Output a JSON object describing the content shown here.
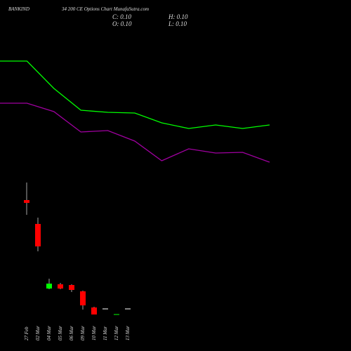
{
  "chart_data": [
    {
      "type": "candlestick",
      "title": "BANKIND",
      "subtitle": "34 200  CE Options  Chart MunafaSutra.com",
      "annotations": [
        "C: 0.10",
        "H: 0.10",
        "O: 0.10",
        "L: 0.10"
      ],
      "categories": [
        "27 Feb",
        "02 Mar",
        "04 Mar",
        "05 Mar",
        "06 Mar",
        "09 Mar",
        "10 Mar",
        "11 Mar",
        "12 Mar",
        "13 Mar"
      ],
      "open": [
        1.65,
        1.31,
        0.39,
        0.45,
        0.44,
        0.35,
        0.12,
        0.1,
        0.02,
        0.1
      ],
      "high": [
        1.9,
        1.4,
        0.53,
        0.47,
        0.45,
        0.36,
        0.13,
        0.1,
        0.02,
        0.1
      ],
      "low": [
        1.44,
        0.92,
        0.38,
        0.38,
        0.34,
        0.09,
        0.02,
        0.1,
        0.02,
        0.1
      ],
      "close": [
        1.61,
        0.99,
        0.46,
        0.39,
        0.37,
        0.15,
        0.02,
        0.1,
        0.02,
        0.1
      ],
      "up_color": "#00ff00",
      "down_color": "#ff0000",
      "flat_color": "#ffffff",
      "ylim": [
        0,
        4.5
      ]
    },
    {
      "type": "line",
      "x": [
        0,
        1,
        2,
        3,
        4,
        5,
        6,
        7,
        8,
        9,
        10
      ],
      "xlim": [
        0,
        10
      ],
      "series": [
        {
          "color": "#00ff00",
          "values": [
            3.63,
            3.63,
            3.24,
            2.93,
            2.9,
            2.89,
            2.75,
            2.67,
            2.72,
            2.67,
            2.72
          ]
        },
        {
          "color": "#a000a0",
          "values": [
            3.03,
            3.03,
            2.91,
            2.62,
            2.64,
            2.49,
            2.21,
            2.38,
            2.32,
            2.33,
            2.19
          ]
        }
      ],
      "ylim": [
        0,
        4.5
      ]
    }
  ]
}
